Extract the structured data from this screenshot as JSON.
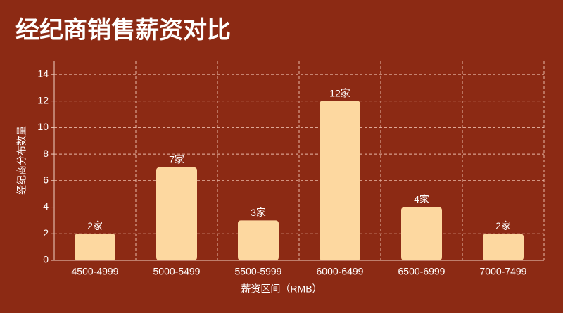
{
  "chart_data": {
    "type": "bar",
    "title": "经纪商销售薪资对比",
    "x_label": "薪资区间（RMB）",
    "y_label": "经纪商分布数量",
    "categories": [
      "4500-4999",
      "5000-5499",
      "5500-5999",
      "6000-6499",
      "6500-6999",
      "7000-7499"
    ],
    "values": [
      2,
      7,
      3,
      12,
      4,
      2
    ],
    "value_labels": [
      "2家",
      "7家",
      "3家",
      "12家",
      "4家",
      "2家"
    ],
    "color": "#fdd8a0",
    "ylim": [
      0,
      15
    ],
    "yticks": [
      0,
      2,
      4,
      6,
      8,
      10,
      12,
      14
    ],
    "grid": true
  }
}
